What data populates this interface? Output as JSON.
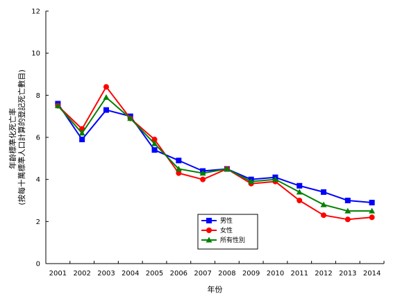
{
  "chart_data": {
    "type": "line",
    "title": "",
    "xlabel": "年份",
    "ylabel_lines": [
      "年齡標準化死亡率",
      "(按每十萬標準人口計算的登記死亡數目)"
    ],
    "categories": [
      "2001",
      "2002",
      "2003",
      "2004",
      "2005",
      "2006",
      "2007",
      "2008",
      "2009",
      "2010",
      "2011",
      "2012",
      "2013",
      "2014"
    ],
    "ylim": [
      0,
      12
    ],
    "yticks": [
      0,
      2,
      4,
      6,
      8,
      10,
      12
    ],
    "grid": false,
    "legend_position": "bottom-center",
    "series": [
      {
        "name": "男性",
        "color": "#0000ff",
        "marker": "square",
        "values": [
          7.6,
          5.9,
          7.3,
          7.0,
          5.4,
          4.9,
          4.4,
          4.5,
          4.0,
          4.1,
          3.7,
          3.4,
          3.0,
          2.9
        ]
      },
      {
        "name": "女性",
        "color": "#ff0000",
        "marker": "circle",
        "values": [
          7.5,
          6.4,
          8.4,
          6.9,
          5.9,
          4.3,
          4.0,
          4.5,
          3.8,
          3.9,
          3.0,
          2.3,
          2.1,
          2.2
        ]
      },
      {
        "name": "所有性別",
        "color": "#008000",
        "marker": "triangle",
        "values": [
          7.5,
          6.2,
          7.9,
          6.9,
          5.7,
          4.5,
          4.3,
          4.5,
          3.9,
          4.0,
          3.4,
          2.8,
          2.5,
          2.5
        ]
      }
    ]
  }
}
